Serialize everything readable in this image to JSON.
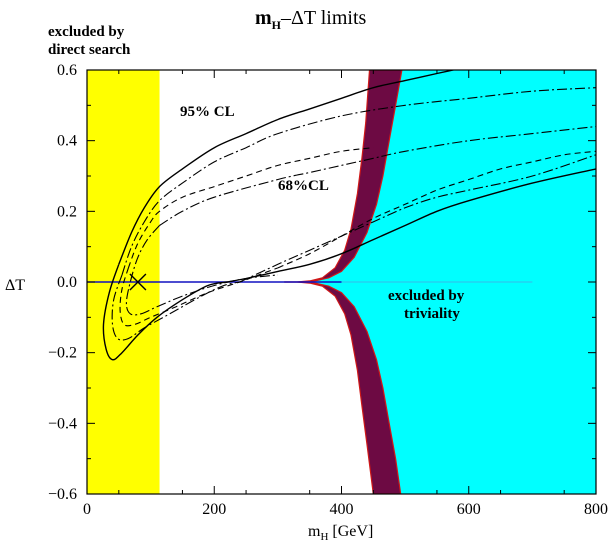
{
  "chart_data": {
    "type": "line",
    "title": "m",
    "title_sub": "H",
    "title_rest": "–ΔT limits",
    "xlabel": "m",
    "xlabel_sub": "H",
    "xlabel_rest": " [GeV]",
    "ylabel": "ΔT",
    "xlim": [
      0,
      800
    ],
    "ylim": [
      -0.6,
      0.6
    ],
    "x_ticks": [
      0,
      200,
      400,
      600,
      800
    ],
    "x_tick_labels": [
      "0",
      "200",
      "400",
      "600",
      "800"
    ],
    "y_ticks": [
      -0.6,
      -0.4,
      -0.2,
      0.0,
      0.2,
      0.4,
      0.6
    ],
    "y_tick_labels": [
      "−0.6",
      "−0.4",
      "−0.2",
      "0.0",
      "0.2",
      "0.4",
      "0.6"
    ],
    "annotations": {
      "excluded_direct_line1": "excluded by",
      "excluded_direct_line2": "direct search",
      "cl95": "95% CL",
      "cl68": "68%CL",
      "excluded_triviality_line1": "excluded by",
      "excluded_triviality_line2": "triviality"
    },
    "colors": {
      "direct_search_region": "#ffff00",
      "triviality_region": "#00ffff",
      "band_fill": "#6d0a43",
      "band_edge": "#d01818",
      "zero_line": "#1010c0"
    },
    "direct_search_limit": 114,
    "best_fit": {
      "x": 80,
      "y": 0.0
    },
    "triviality_band": {
      "inner": [
        [
          310,
          0.0
        ],
        [
          330,
          0.0
        ],
        [
          350,
          0.003
        ],
        [
          370,
          0.012
        ],
        [
          390,
          0.04
        ],
        [
          405,
          0.09
        ],
        [
          415,
          0.15
        ],
        [
          425,
          0.25
        ],
        [
          432,
          0.35
        ],
        [
          438,
          0.45
        ],
        [
          444,
          0.6
        ]
      ],
      "outer": [
        [
          340,
          0.0
        ],
        [
          360,
          0.004
        ],
        [
          380,
          0.012
        ],
        [
          400,
          0.03
        ],
        [
          420,
          0.07
        ],
        [
          440,
          0.14
        ],
        [
          455,
          0.22
        ],
        [
          465,
          0.3
        ],
        [
          475,
          0.4
        ],
        [
          485,
          0.5
        ],
        [
          495,
          0.6
        ]
      ],
      "inner_bottom": [
        [
          310,
          0.0
        ],
        [
          330,
          0.0
        ],
        [
          350,
          -0.003
        ],
        [
          370,
          -0.012
        ],
        [
          390,
          -0.04
        ],
        [
          405,
          -0.09
        ],
        [
          415,
          -0.15
        ],
        [
          425,
          -0.25
        ],
        [
          432,
          -0.35
        ],
        [
          440,
          -0.46
        ],
        [
          450,
          -0.6
        ]
      ],
      "outer_bottom": [
        [
          340,
          0.0
        ],
        [
          360,
          -0.004
        ],
        [
          380,
          -0.012
        ],
        [
          400,
          -0.03
        ],
        [
          420,
          -0.07
        ],
        [
          440,
          -0.14
        ],
        [
          455,
          -0.22
        ],
        [
          465,
          -0.3
        ],
        [
          475,
          -0.4
        ],
        [
          485,
          -0.5
        ],
        [
          493,
          -0.6
        ]
      ]
    },
    "series": [
      {
        "name": "95% CL",
        "style": "solid",
        "upper": [
          [
            50,
            0.05
          ],
          [
            70,
            0.14
          ],
          [
            90,
            0.21
          ],
          [
            114,
            0.27
          ],
          [
            150,
            0.32
          ],
          [
            200,
            0.38
          ],
          [
            250,
            0.42
          ],
          [
            300,
            0.46
          ],
          [
            350,
            0.49
          ],
          [
            400,
            0.52
          ],
          [
            450,
            0.55
          ],
          [
            500,
            0.57
          ],
          [
            550,
            0.59
          ],
          [
            600,
            0.61
          ]
        ],
        "lower": [
          [
            220,
            0.0
          ],
          [
            250,
            0.01
          ],
          [
            300,
            0.03
          ],
          [
            350,
            0.05
          ],
          [
            400,
            0.08
          ],
          [
            450,
            0.12
          ],
          [
            500,
            0.16
          ],
          [
            550,
            0.2
          ],
          [
            600,
            0.23
          ],
          [
            700,
            0.28
          ],
          [
            800,
            0.32
          ]
        ],
        "closure": [
          [
            50,
            0.05
          ],
          [
            35,
            -0.03
          ],
          [
            26,
            -0.12
          ],
          [
            30,
            -0.19
          ],
          [
            40,
            -0.22
          ],
          [
            55,
            -0.2
          ],
          [
            80,
            -0.15
          ],
          [
            110,
            -0.1
          ],
          [
            150,
            -0.05
          ],
          [
            190,
            -0.01
          ],
          [
            220,
            0.0
          ]
        ]
      },
      {
        "name": "95% CL inner",
        "style": "dashdot",
        "upper": [
          [
            55,
            0.02
          ],
          [
            70,
            0.1
          ],
          [
            90,
            0.17
          ],
          [
            114,
            0.23
          ],
          [
            150,
            0.28
          ],
          [
            200,
            0.34
          ],
          [
            250,
            0.38
          ],
          [
            300,
            0.42
          ],
          [
            400,
            0.47
          ],
          [
            500,
            0.5
          ],
          [
            600,
            0.52
          ],
          [
            700,
            0.54
          ],
          [
            800,
            0.55
          ]
        ],
        "lower": [
          [
            240,
            0.0
          ],
          [
            300,
            0.05
          ],
          [
            350,
            0.09
          ],
          [
            400,
            0.13
          ],
          [
            450,
            0.17
          ],
          [
            500,
            0.21
          ],
          [
            550,
            0.24
          ],
          [
            600,
            0.26
          ],
          [
            700,
            0.3
          ],
          [
            800,
            0.36
          ]
        ],
        "closure": [
          [
            55,
            0.02
          ],
          [
            42,
            -0.05
          ],
          [
            40,
            -0.12
          ],
          [
            48,
            -0.16
          ],
          [
            65,
            -0.16
          ],
          [
            90,
            -0.13
          ],
          [
            130,
            -0.09
          ],
          [
            180,
            -0.04
          ],
          [
            215,
            -0.01
          ],
          [
            240,
            0.0
          ]
        ]
      },
      {
        "name": "68% CL",
        "style": "dashed",
        "upper": [
          [
            65,
            0.04
          ],
          [
            80,
            0.11
          ],
          [
            100,
            0.17
          ],
          [
            114,
            0.2
          ],
          [
            150,
            0.24
          ],
          [
            200,
            0.27
          ],
          [
            250,
            0.3
          ],
          [
            300,
            0.33
          ],
          [
            350,
            0.35
          ],
          [
            400,
            0.37
          ],
          [
            450,
            0.38
          ]
        ],
        "lower": [
          [
            300,
            0.04
          ],
          [
            350,
            0.08
          ],
          [
            400,
            0.13
          ],
          [
            450,
            0.18
          ],
          [
            500,
            0.22
          ],
          [
            550,
            0.26
          ],
          [
            600,
            0.29
          ],
          [
            650,
            0.32
          ],
          [
            700,
            0.34
          ],
          [
            750,
            0.36
          ],
          [
            800,
            0.37
          ]
        ],
        "closure": [
          [
            65,
            0.04
          ],
          [
            55,
            -0.02
          ],
          [
            52,
            -0.08
          ],
          [
            58,
            -0.12
          ],
          [
            75,
            -0.12
          ],
          [
            100,
            -0.1
          ],
          [
            140,
            -0.07
          ],
          [
            190,
            -0.03
          ],
          [
            240,
            0.0
          ],
          [
            270,
            0.02
          ],
          [
            300,
            0.04
          ]
        ]
      },
      {
        "name": "68% CL outer dashdot",
        "style": "dashdot",
        "upper": [
          [
            114,
            0.16
          ],
          [
            150,
            0.2
          ],
          [
            200,
            0.24
          ],
          [
            300,
            0.29
          ],
          [
            350,
            0.31
          ],
          [
            400,
            0.33
          ],
          [
            450,
            0.35
          ],
          [
            500,
            0.37
          ],
          [
            600,
            0.4
          ],
          [
            700,
            0.42
          ],
          [
            800,
            0.44
          ]
        ],
        "lower": [],
        "closure": [
          [
            114,
            0.16
          ],
          [
            95,
            0.12
          ],
          [
            80,
            0.07
          ],
          [
            68,
            0.0
          ],
          [
            62,
            -0.06
          ],
          [
            68,
            -0.09
          ],
          [
            85,
            -0.09
          ],
          [
            110,
            -0.07
          ],
          [
            150,
            -0.04
          ],
          [
            200,
            -0.01
          ],
          [
            250,
            0.01
          ],
          [
            300,
            0.02
          ]
        ]
      }
    ]
  }
}
